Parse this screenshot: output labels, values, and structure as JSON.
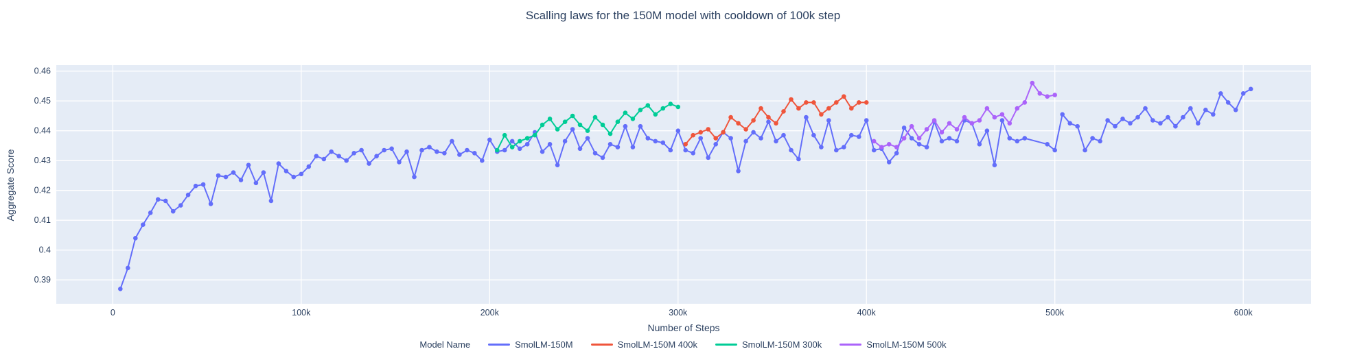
{
  "title": "Scalling laws for the 150M model with cooldown of 100k step",
  "colors": {
    "text": "#2a3f5f",
    "plot_background": "#e5ecf6",
    "gridline": "#ffffff",
    "series_blue": "#636efa",
    "series_red": "#ef553b",
    "series_green": "#00cc96",
    "series_purple": "#ab63fa"
  },
  "chart_data": {
    "type": "line",
    "title": "Scalling laws for the 150M model with cooldown of 100k step",
    "xlabel": "Number of Steps",
    "ylabel": "Aggregate Score",
    "legend_title": "Model Name",
    "legend_position": "bottom",
    "grid": true,
    "mode": "lines+markers",
    "xlim": [
      -30000,
      636000
    ],
    "ylim": [
      0.382,
      0.462
    ],
    "x_ticks": [
      0,
      100000,
      200000,
      300000,
      400000,
      500000,
      600000
    ],
    "x_tick_labels": [
      "0",
      "100k",
      "200k",
      "300k",
      "400k",
      "500k",
      "600k"
    ],
    "y_ticks": [
      0.39,
      0.4,
      0.41,
      0.42,
      0.43,
      0.44,
      0.45,
      0.46
    ],
    "y_tick_labels": [
      "0.39",
      "0.4",
      "0.41",
      "0.42",
      "0.43",
      "0.44",
      "0.45",
      "0.46"
    ],
    "series": [
      {
        "name": "SmolLM-150M",
        "color": "#636efa",
        "x": [
          4000,
          8000,
          12000,
          16000,
          20000,
          24000,
          28000,
          32000,
          36000,
          40000,
          44000,
          48000,
          52000,
          56000,
          60000,
          64000,
          68000,
          72000,
          76000,
          80000,
          84000,
          88000,
          92000,
          96000,
          100000,
          104000,
          108000,
          112000,
          116000,
          120000,
          124000,
          128000,
          132000,
          136000,
          140000,
          144000,
          148000,
          152000,
          156000,
          160000,
          164000,
          168000,
          172000,
          176000,
          180000,
          184000,
          188000,
          192000,
          196000,
          200000,
          204000,
          208000,
          212000,
          216000,
          220000,
          224000,
          228000,
          232000,
          236000,
          240000,
          244000,
          248000,
          252000,
          256000,
          260000,
          264000,
          268000,
          272000,
          276000,
          280000,
          284000,
          288000,
          292000,
          296000,
          300000,
          304000,
          308000,
          312000,
          316000,
          320000,
          324000,
          328000,
          332000,
          336000,
          340000,
          344000,
          348000,
          352000,
          356000,
          360000,
          364000,
          368000,
          372000,
          376000,
          380000,
          384000,
          388000,
          392000,
          396000,
          400000,
          404000,
          408000,
          412000,
          416000,
          420000,
          424000,
          428000,
          432000,
          436000,
          440000,
          444000,
          448000,
          452000,
          456000,
          460000,
          464000,
          468000,
          472000,
          476000,
          480000,
          484000,
          496000,
          500000,
          504000,
          508000,
          512000,
          516000,
          520000,
          524000,
          528000,
          532000,
          536000,
          540000,
          544000,
          548000,
          552000,
          556000,
          560000,
          564000,
          568000,
          572000,
          576000,
          580000,
          584000,
          588000,
          592000,
          596000,
          600000,
          604000
        ],
        "y": [
          0.387,
          0.394,
          0.404,
          0.4085,
          0.4125,
          0.417,
          0.4165,
          0.413,
          0.415,
          0.4185,
          0.4215,
          0.422,
          0.4155,
          0.425,
          0.4245,
          0.426,
          0.4235,
          0.4285,
          0.4225,
          0.426,
          0.4165,
          0.429,
          0.4265,
          0.4245,
          0.4255,
          0.428,
          0.4315,
          0.4305,
          0.433,
          0.4315,
          0.43,
          0.4325,
          0.4335,
          0.429,
          0.4315,
          0.4335,
          0.434,
          0.4295,
          0.433,
          0.4245,
          0.4335,
          0.4345,
          0.433,
          0.4325,
          0.4365,
          0.432,
          0.4335,
          0.4325,
          0.43,
          0.437,
          0.433,
          0.4335,
          0.4365,
          0.434,
          0.4355,
          0.4395,
          0.433,
          0.4355,
          0.4285,
          0.4365,
          0.4405,
          0.434,
          0.4375,
          0.4325,
          0.431,
          0.4355,
          0.4345,
          0.4415,
          0.4345,
          0.4415,
          0.4375,
          0.4365,
          0.436,
          0.4335,
          0.44,
          0.4335,
          0.4325,
          0.4375,
          0.431,
          0.4355,
          0.4395,
          0.4375,
          0.4265,
          0.4365,
          0.4395,
          0.4375,
          0.443,
          0.4365,
          0.4385,
          0.4335,
          0.4305,
          0.4445,
          0.4385,
          0.4345,
          0.4435,
          0.4335,
          0.4345,
          0.4385,
          0.438,
          0.4435,
          0.4335,
          0.434,
          0.4295,
          0.4325,
          0.441,
          0.4375,
          0.4355,
          0.4345,
          0.443,
          0.4365,
          0.4375,
          0.4365,
          0.4435,
          0.4425,
          0.4355,
          0.44,
          0.4285,
          0.4435,
          0.4375,
          0.4365,
          0.4375,
          0.4355,
          0.4335,
          0.4455,
          0.4425,
          0.4415,
          0.4335,
          0.4375,
          0.4365,
          0.4435,
          0.4415,
          0.444,
          0.4425,
          0.4445,
          0.4475,
          0.4435,
          0.4425,
          0.4445,
          0.4415,
          0.4445,
          0.4475,
          0.4425,
          0.447,
          0.4455,
          0.4525,
          0.4495,
          0.447,
          0.4525,
          0.454
        ]
      },
      {
        "name": "SmolLM-150M 400k",
        "color": "#ef553b",
        "x": [
          304000,
          308000,
          312000,
          316000,
          320000,
          324000,
          328000,
          332000,
          336000,
          340000,
          344000,
          348000,
          352000,
          356000,
          360000,
          364000,
          368000,
          372000,
          376000,
          380000,
          384000,
          388000,
          392000,
          396000,
          400000
        ],
        "y": [
          0.4355,
          0.4385,
          0.4395,
          0.4405,
          0.4375,
          0.4395,
          0.4445,
          0.4425,
          0.4405,
          0.4435,
          0.4475,
          0.4445,
          0.4425,
          0.4465,
          0.4505,
          0.4475,
          0.4495,
          0.4495,
          0.4455,
          0.4475,
          0.4495,
          0.4515,
          0.4475,
          0.4495,
          0.4495
        ]
      },
      {
        "name": "SmolLM-150M 300k",
        "color": "#00cc96",
        "x": [
          204000,
          208000,
          212000,
          216000,
          220000,
          224000,
          228000,
          232000,
          236000,
          240000,
          244000,
          248000,
          252000,
          256000,
          260000,
          264000,
          268000,
          272000,
          276000,
          280000,
          284000,
          288000,
          292000,
          296000,
          300000
        ],
        "y": [
          0.4335,
          0.4385,
          0.4345,
          0.4365,
          0.4375,
          0.4385,
          0.442,
          0.444,
          0.4405,
          0.443,
          0.445,
          0.442,
          0.44,
          0.4445,
          0.442,
          0.439,
          0.443,
          0.446,
          0.444,
          0.447,
          0.4485,
          0.4455,
          0.4475,
          0.449,
          0.448
        ]
      },
      {
        "name": "SmolLM-150M 500k",
        "color": "#ab63fa",
        "x": [
          404000,
          408000,
          412000,
          416000,
          420000,
          424000,
          428000,
          432000,
          436000,
          440000,
          444000,
          448000,
          452000,
          456000,
          460000,
          464000,
          468000,
          472000,
          476000,
          480000,
          484000,
          488000,
          492000,
          496000,
          500000
        ],
        "y": [
          0.4365,
          0.4345,
          0.4355,
          0.4345,
          0.4375,
          0.4415,
          0.4375,
          0.4405,
          0.4435,
          0.4395,
          0.4425,
          0.4405,
          0.4445,
          0.4425,
          0.4435,
          0.4475,
          0.4445,
          0.4455,
          0.4425,
          0.4475,
          0.4495,
          0.456,
          0.4525,
          0.4515,
          0.452
        ]
      }
    ]
  }
}
